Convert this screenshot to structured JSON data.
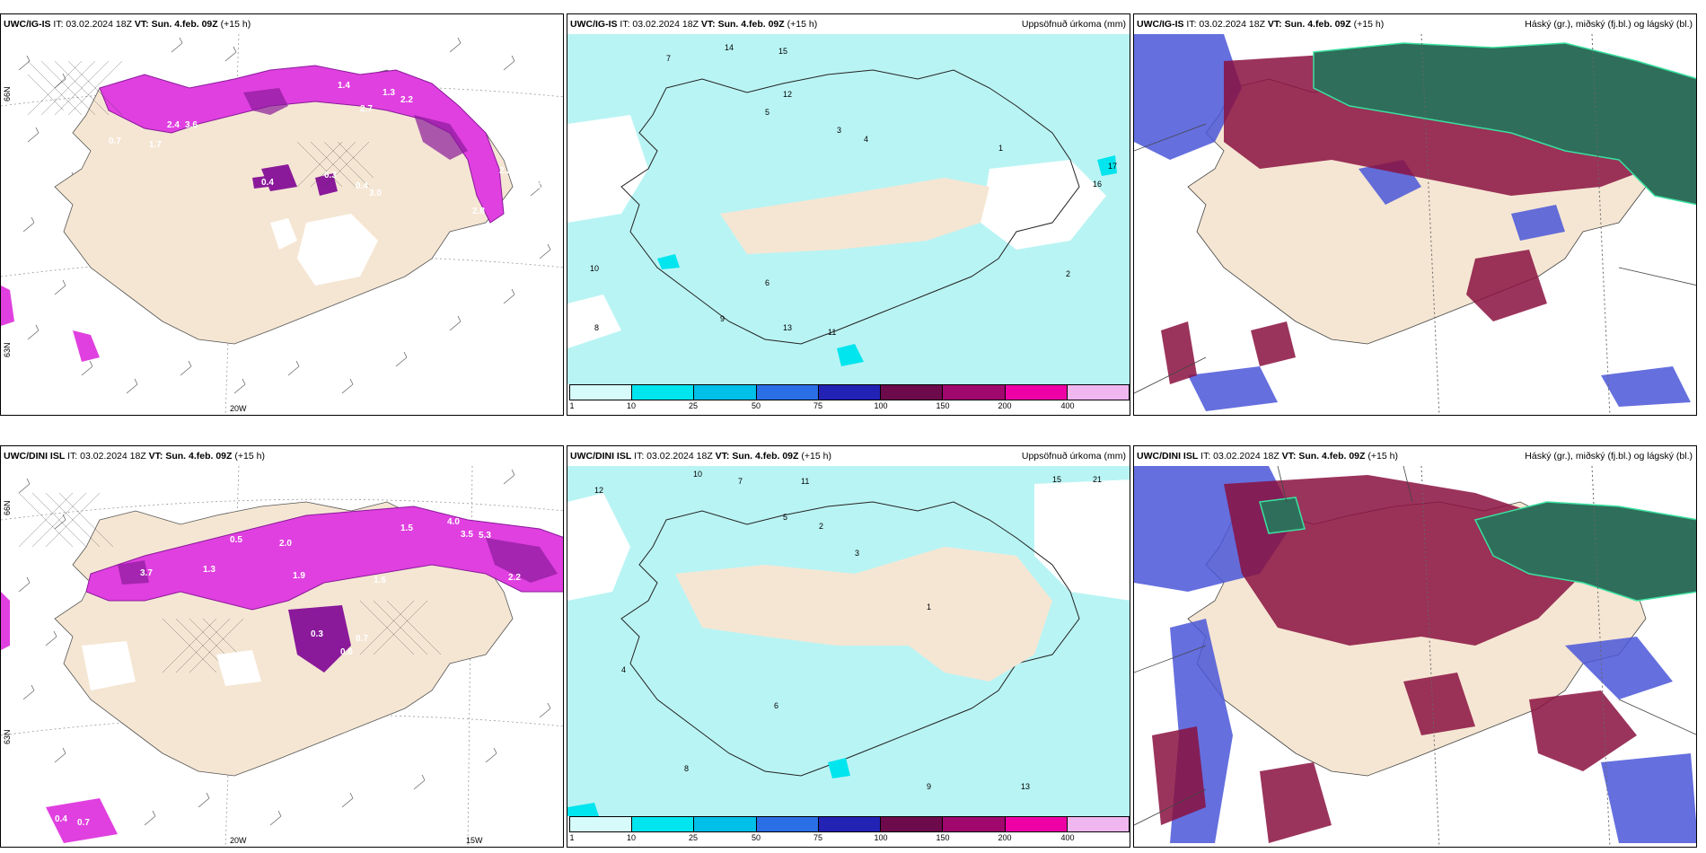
{
  "figure": "Iceland weather model comparison, 15 h forecast",
  "rows": [
    {
      "panels": [
        {
          "model": "UWC/IG-IS",
          "it": "IT: 03.02.2024 18Z",
          "vt": "VT: Sun. 4.feb. 09Z",
          "lead": "(+15 h)",
          "right": ""
        },
        {
          "model": "UWC/IG-IS",
          "it": "IT: 03.02.2024 18Z",
          "vt": "VT: Sun. 4.feb. 09Z",
          "lead": "(+15 h)",
          "right": "Uppsöfnuð úrkoma (mm)"
        },
        {
          "model": "UWC/IG-IS",
          "it": "IT: 03.02.2024 18Z",
          "vt": "VT: Sun. 4.feb. 09Z",
          "lead": "(+15 h)",
          "right": "Háský (gr.), miðský (fj.bl.) og lágský (bl.)"
        }
      ]
    },
    {
      "panels": [
        {
          "model": "UWC/DINI ISL",
          "it": "IT: 03.02.2024 18Z",
          "vt": "VT: Sun. 4.feb. 09Z",
          "lead": "(+15 h)",
          "right": ""
        },
        {
          "model": "UWC/DINI ISL",
          "it": "IT: 03.02.2024 18Z",
          "vt": "VT: Sun. 4.feb. 09Z",
          "lead": "(+15 h)",
          "right": "Uppsöfnuð úrkoma (mm)"
        },
        {
          "model": "UWC/DINI ISL",
          "it": "IT: 03.02.2024 18Z",
          "vt": "VT: Sun. 4.feb. 09Z",
          "lead": "(+15 h)",
          "right": "Háský (gr.), miðský (fj.bl.) og lágský (bl.)"
        }
      ]
    }
  ],
  "axis_labels": {
    "lat66": "66N",
    "lon20": "20W",
    "lon15": "15W",
    "lat63": "63N"
  },
  "precip_colorbar": {
    "ticks": [
      "1",
      "10",
      "25",
      "50",
      "75",
      "100",
      "150",
      "200",
      "400"
    ],
    "colors": [
      "#d7fbfb",
      "#00e5ee",
      "#00bfe8",
      "#2b6fe6",
      "#2222b4",
      "#6d0a4c",
      "#a0086e",
      "#ee00a6",
      "#f0b6f0"
    ]
  },
  "top_left_values": [
    "1.4",
    "1.3",
    "2.2",
    "2.7",
    "3.6",
    "2.4",
    "0.7",
    "1.7",
    "0.4",
    "0.3",
    "0.4",
    "3.0",
    "2.2",
    "2.8",
    "2.0",
    "3.5",
    "3.3",
    "7.0"
  ],
  "bottom_left_values": [
    "1.5",
    "4.0",
    "3.5",
    "5.3",
    "2.0",
    "1.9",
    "1.6",
    "1.3",
    "0.3",
    "0.6",
    "0.7",
    "2.2",
    "0.5",
    "0.4",
    "0.7",
    "3.7"
  ],
  "top_mid_values": [
    "7",
    "14",
    "15",
    "10",
    "5",
    "8",
    "12",
    "3",
    "4",
    "9",
    "6",
    "13",
    "11",
    "2",
    "1",
    "17",
    "16"
  ],
  "bottom_mid_values": [
    "10",
    "7",
    "11",
    "12",
    "5",
    "3",
    "8",
    "4",
    "6",
    "9",
    "13",
    "2",
    "1",
    "15",
    "21"
  ],
  "colors": {
    "land": "#f5e6d3",
    "precip_light": "#b9f4f4",
    "snow_magenta": "#e040e0",
    "snow_purple": "#8a1a9a",
    "cloud_green": "#2f6e5a",
    "cloud_red": "#8a1040",
    "cloud_blue": "#4a56d8"
  }
}
